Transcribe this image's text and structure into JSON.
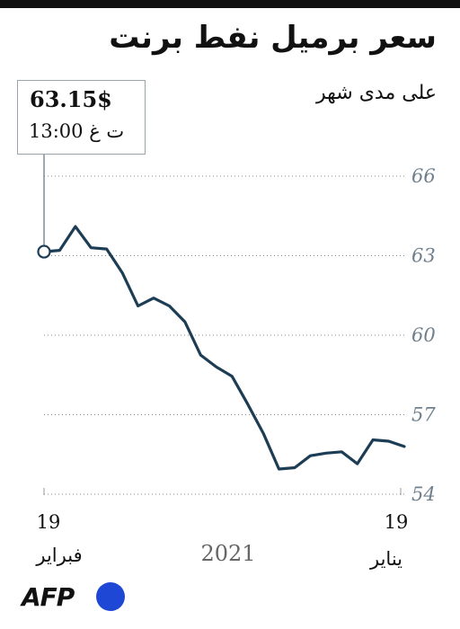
{
  "chart_data": {
    "type": "line",
    "title": "سعر برميل نفط برنت",
    "subtitle": "على مدى شهر",
    "callout": {
      "price": "63.15$",
      "time": "13:00 ت غ"
    },
    "ylim": [
      54,
      66
    ],
    "yticks": [
      "66",
      "63",
      "60",
      "57",
      "54"
    ],
    "grid": true,
    "x_start_label": {
      "day": "19",
      "month": "فبراير"
    },
    "x_end_label": {
      "day": "19",
      "month": "يناير"
    },
    "x_center_label": "2021",
    "series": [
      {
        "color": "#1d3d55",
        "values": [
          63.15,
          63.2,
          64.1,
          63.3,
          63.25,
          62.35,
          61.1,
          61.4,
          61.1,
          60.5,
          59.25,
          58.8,
          58.45,
          57.4,
          56.3,
          54.95,
          55.0,
          55.45,
          55.55,
          55.6,
          55.15,
          56.05,
          56.0,
          55.8
        ],
        "color_hex": "#1d3d55"
      }
    ]
  },
  "logo": {
    "text": "AFP",
    "dot_color": "#1f47d6"
  }
}
